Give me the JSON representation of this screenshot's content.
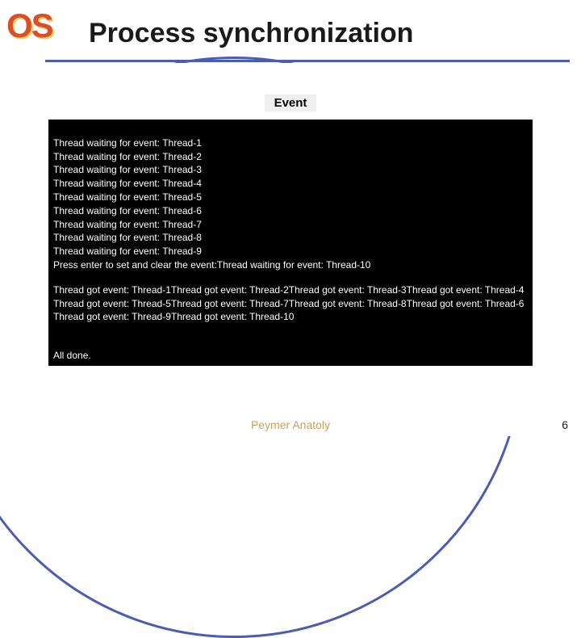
{
  "logo": "OS",
  "title": "Process synchronization",
  "event_label": "Event",
  "console": {
    "waiting_lines": [
      "Thread waiting for event: Thread-1",
      "Thread waiting for event: Thread-2",
      "Thread waiting for event: Thread-3",
      "Thread waiting for event: Thread-4",
      "Thread waiting for event: Thread-5",
      "Thread waiting for event: Thread-6",
      "Thread waiting for event: Thread-7",
      "Thread waiting for event: Thread-8",
      "Thread waiting for event: Thread-9",
      "Press enter to set and clear the event:Thread waiting for event: Thread-10"
    ],
    "got_block": "Thread got event: Thread-1Thread got event: Thread-2Thread got event: Thread-3Thread got event: Thread-4Thread got event: Thread-5Thread got event: Thread-7Thread got event: Thread-8Thread got event: Thread-6Thread got event: Thread-9Thread got event: Thread-10",
    "done": "All done."
  },
  "footer": "Peymer Anatoly",
  "page": "6",
  "colors": {
    "accent": "#4a5db0",
    "logo_fill": "#d94f2a",
    "logo_shadow": "#f0d060",
    "console_bg": "#000000",
    "console_fg": "#ffffff",
    "footer": "#c8a060"
  }
}
